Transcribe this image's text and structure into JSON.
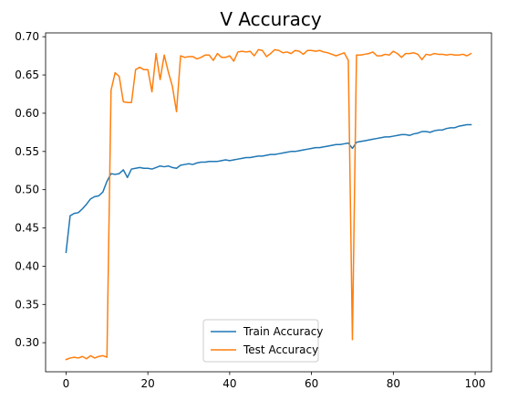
{
  "chart_data": {
    "type": "line",
    "title": "V Accuracy",
    "xlabel": "",
    "ylabel": "",
    "xlim": [
      -5,
      104
    ],
    "ylim": [
      0.262,
      0.705
    ],
    "x_ticks": [
      0,
      20,
      40,
      60,
      80,
      100
    ],
    "y_ticks": [
      0.3,
      0.35,
      0.4,
      0.45,
      0.5,
      0.55,
      0.6,
      0.65,
      0.7
    ],
    "y_tick_labels": [
      "0.30",
      "0.35",
      "0.40",
      "0.45",
      "0.50",
      "0.55",
      "0.60",
      "0.65",
      "0.70"
    ],
    "grid": false,
    "legend_position": "lower center",
    "series": [
      {
        "name": "Train Accuracy",
        "color": "#1f77b4",
        "x": [
          0,
          1,
          2,
          3,
          4,
          5,
          6,
          7,
          8,
          9,
          10,
          11,
          12,
          13,
          14,
          15,
          16,
          17,
          18,
          19,
          20,
          21,
          22,
          23,
          24,
          25,
          26,
          27,
          28,
          29,
          30,
          31,
          32,
          33,
          34,
          35,
          36,
          37,
          38,
          39,
          40,
          41,
          42,
          43,
          44,
          45,
          46,
          47,
          48,
          49,
          50,
          51,
          52,
          53,
          54,
          55,
          56,
          57,
          58,
          59,
          60,
          61,
          62,
          63,
          64,
          65,
          66,
          67,
          68,
          69,
          70,
          71,
          72,
          73,
          74,
          75,
          76,
          77,
          78,
          79,
          80,
          81,
          82,
          83,
          84,
          85,
          86,
          87,
          88,
          89,
          90,
          91,
          92,
          93,
          94,
          95,
          96,
          97,
          98,
          99
        ],
        "values": [
          0.418,
          0.466,
          0.469,
          0.47,
          0.475,
          0.481,
          0.488,
          0.491,
          0.492,
          0.497,
          0.511,
          0.521,
          0.52,
          0.521,
          0.526,
          0.516,
          0.527,
          0.528,
          0.529,
          0.528,
          0.528,
          0.527,
          0.529,
          0.531,
          0.53,
          0.531,
          0.529,
          0.528,
          0.532,
          0.533,
          0.534,
          0.533,
          0.535,
          0.536,
          0.536,
          0.537,
          0.537,
          0.537,
          0.538,
          0.539,
          0.538,
          0.539,
          0.54,
          0.541,
          0.542,
          0.542,
          0.543,
          0.544,
          0.544,
          0.545,
          0.546,
          0.546,
          0.547,
          0.548,
          0.549,
          0.55,
          0.55,
          0.551,
          0.552,
          0.553,
          0.554,
          0.555,
          0.555,
          0.556,
          0.557,
          0.558,
          0.559,
          0.559,
          0.56,
          0.561,
          0.554,
          0.562,
          0.563,
          0.564,
          0.565,
          0.566,
          0.567,
          0.568,
          0.569,
          0.569,
          0.57,
          0.571,
          0.572,
          0.572,
          0.571,
          0.573,
          0.574,
          0.576,
          0.576,
          0.575,
          0.577,
          0.578,
          0.578,
          0.58,
          0.581,
          0.581,
          0.583,
          0.584,
          0.585,
          0.585
        ]
      },
      {
        "name": "Test Accuracy",
        "color": "#ff7f0e",
        "x": [
          0,
          1,
          2,
          3,
          4,
          5,
          6,
          7,
          8,
          9,
          10,
          11,
          12,
          13,
          14,
          15,
          16,
          17,
          18,
          19,
          20,
          21,
          22,
          23,
          24,
          25,
          26,
          27,
          28,
          29,
          30,
          31,
          32,
          33,
          34,
          35,
          36,
          37,
          38,
          39,
          40,
          41,
          42,
          43,
          44,
          45,
          46,
          47,
          48,
          49,
          50,
          51,
          52,
          53,
          54,
          55,
          56,
          57,
          58,
          59,
          60,
          61,
          62,
          63,
          64,
          65,
          66,
          67,
          68,
          69,
          70,
          71,
          72,
          73,
          74,
          75,
          76,
          77,
          78,
          79,
          80,
          81,
          82,
          83,
          84,
          85,
          86,
          87,
          88,
          89,
          90,
          91,
          92,
          93,
          94,
          95,
          96,
          97,
          98,
          99
        ],
        "values": [
          0.278,
          0.28,
          0.281,
          0.28,
          0.282,
          0.279,
          0.283,
          0.28,
          0.282,
          0.283,
          0.281,
          0.63,
          0.653,
          0.648,
          0.615,
          0.614,
          0.614,
          0.657,
          0.66,
          0.657,
          0.657,
          0.628,
          0.678,
          0.644,
          0.676,
          0.654,
          0.635,
          0.602,
          0.675,
          0.673,
          0.674,
          0.674,
          0.671,
          0.673,
          0.676,
          0.676,
          0.669,
          0.678,
          0.673,
          0.673,
          0.675,
          0.668,
          0.68,
          0.681,
          0.68,
          0.681,
          0.675,
          0.683,
          0.682,
          0.674,
          0.678,
          0.683,
          0.682,
          0.679,
          0.68,
          0.678,
          0.682,
          0.681,
          0.677,
          0.682,
          0.682,
          0.681,
          0.682,
          0.68,
          0.679,
          0.677,
          0.675,
          0.677,
          0.679,
          0.669,
          0.304,
          0.676,
          0.676,
          0.677,
          0.678,
          0.68,
          0.675,
          0.675,
          0.677,
          0.676,
          0.681,
          0.678,
          0.673,
          0.678,
          0.678,
          0.679,
          0.677,
          0.67,
          0.677,
          0.676,
          0.678,
          0.677,
          0.677,
          0.676,
          0.677,
          0.676,
          0.676,
          0.677,
          0.675,
          0.678
        ]
      }
    ]
  }
}
